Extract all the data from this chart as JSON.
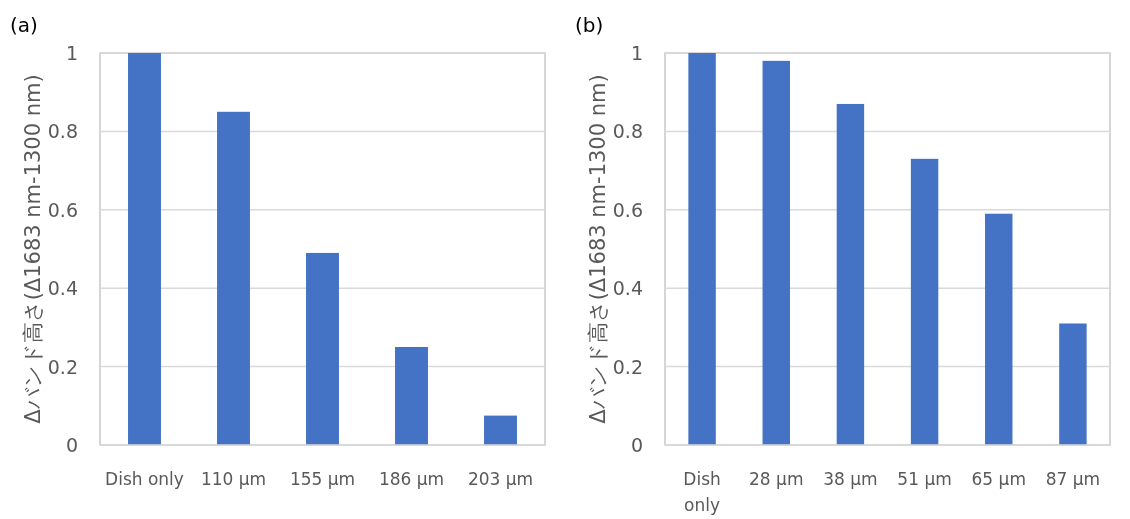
{
  "chart_data": [
    {
      "type": "bar",
      "title": "(a)",
      "ylabel": "Δバンド高さ(Δ1683 nm-1300 nm)",
      "categories": [
        "Dish only",
        "110 µm",
        "155 µm",
        "186 µm",
        "203 µm"
      ],
      "values": [
        1,
        0.85,
        0.49,
        0.25,
        0.075
      ],
      "color": "#4472c4",
      "ylim": [
        0,
        1
      ],
      "yticks": [
        0,
        0.2,
        0.4,
        0.6,
        0.8,
        1
      ],
      "grid": "y"
    },
    {
      "type": "bar",
      "title": "(b)",
      "ylabel": "Δバンド高さ(Δ1683 nm-1300 nm)",
      "categories": [
        "Dish only",
        "28 µm",
        "38 µm",
        "51 µm",
        "65 µm",
        "87 µm"
      ],
      "values": [
        1,
        0.98,
        0.87,
        0.73,
        0.59,
        0.31
      ],
      "color": "#4472c4",
      "ylim": [
        0,
        1
      ],
      "yticks": [
        0,
        0.2,
        0.4,
        0.6,
        0.8,
        1
      ],
      "grid": "y"
    }
  ]
}
